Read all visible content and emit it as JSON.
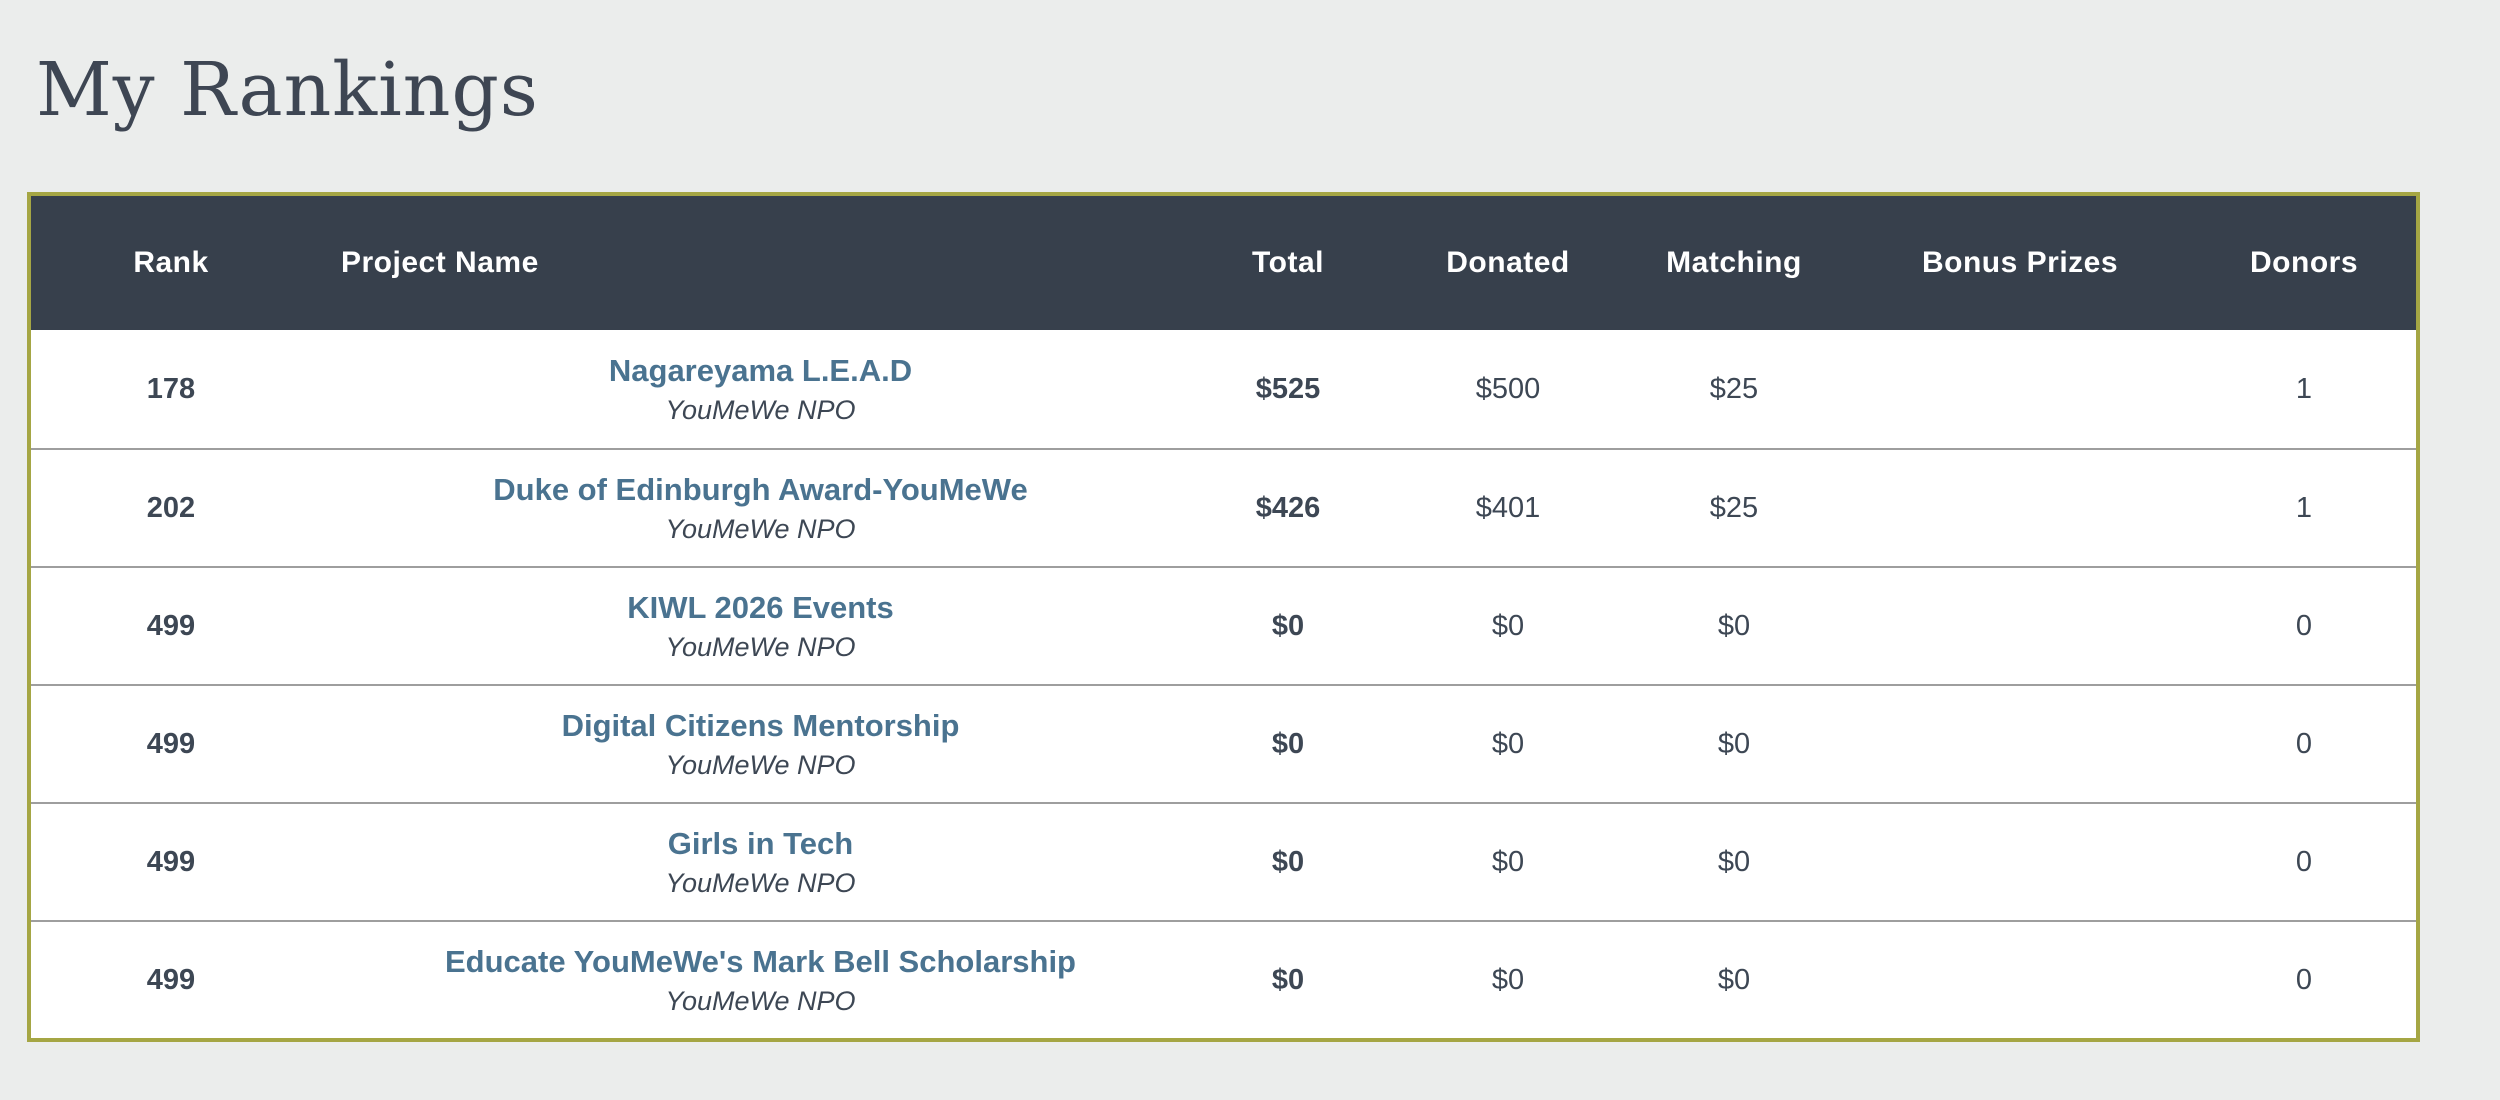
{
  "page": {
    "title": "My Rankings",
    "background_color": "#ebedec"
  },
  "table": {
    "style": {
      "border_color": "#a5a644",
      "header_bg": "#37404c",
      "header_text_color": "#ffffff",
      "donated_column_bg": "#d5d794",
      "project_link_color": "#4a7390",
      "row_divider_color": "#9e9e9e"
    },
    "columns": {
      "rank": "Rank",
      "project": "Project Name",
      "total": "Total",
      "donated": "Donated",
      "matching": "Matching",
      "bonus": "Bonus Prizes",
      "donors": "Donors"
    },
    "rows": [
      {
        "rank": "178",
        "project_name": "Nagareyama L.E.A.D",
        "org": "YouMeWe NPO",
        "total": "$525",
        "donated": "$500",
        "matching": "$25",
        "bonus": "",
        "donors": "1"
      },
      {
        "rank": "202",
        "project_name": "Duke of Edinburgh Award-YouMeWe",
        "org": "YouMeWe NPO",
        "total": "$426",
        "donated": "$401",
        "matching": "$25",
        "bonus": "",
        "donors": "1"
      },
      {
        "rank": "499",
        "project_name": "KIWL 2026 Events",
        "org": "YouMeWe NPO",
        "total": "$0",
        "donated": "$0",
        "matching": "$0",
        "bonus": "",
        "donors": "0"
      },
      {
        "rank": "499",
        "project_name": "Digital Citizens Mentorship",
        "org": "YouMeWe NPO",
        "total": "$0",
        "donated": "$0",
        "matching": "$0",
        "bonus": "",
        "donors": "0"
      },
      {
        "rank": "499",
        "project_name": "Girls in Tech",
        "org": "YouMeWe NPO",
        "total": "$0",
        "donated": "$0",
        "matching": "$0",
        "bonus": "",
        "donors": "0"
      },
      {
        "rank": "499",
        "project_name": "Educate YouMeWe's Mark Bell Scholarship",
        "org": "YouMeWe NPO",
        "total": "$0",
        "donated": "$0",
        "matching": "$0",
        "bonus": "",
        "donors": "0"
      }
    ]
  }
}
